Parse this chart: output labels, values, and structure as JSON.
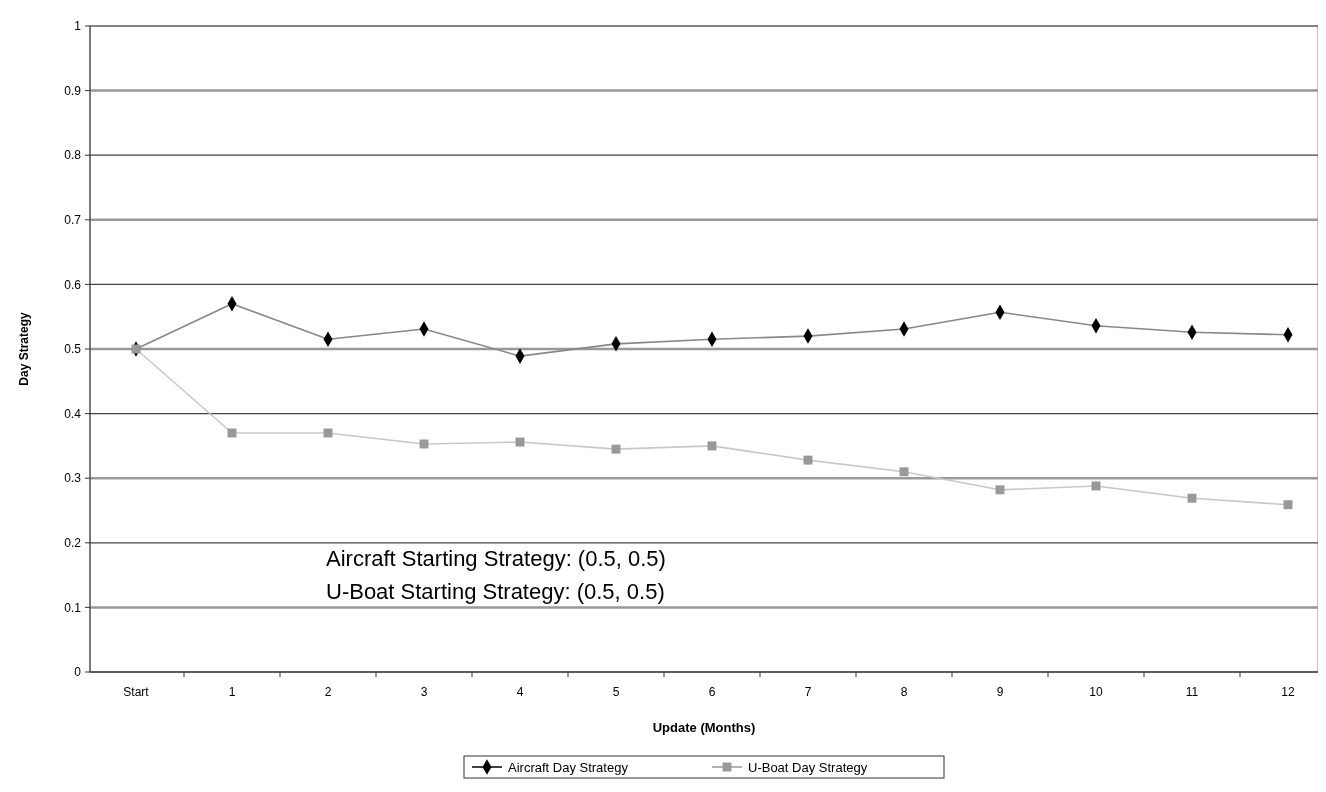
{
  "chart_data": {
    "type": "line",
    "xlabel": "Update (Months)",
    "ylabel": "Day Strategy",
    "categories": [
      "Start",
      "1",
      "2",
      "3",
      "4",
      "5",
      "6",
      "7",
      "8",
      "9",
      "10",
      "11",
      "12"
    ],
    "series": [
      {
        "name": "Aircraft Day Strategy",
        "color": "#000000",
        "marker": "diamond",
        "values": [
          0.5,
          0.57,
          0.515,
          0.531,
          0.489,
          0.508,
          0.515,
          0.52,
          0.531,
          0.557,
          0.536,
          0.526,
          0.522
        ]
      },
      {
        "name": "U-Boat Day Strategy",
        "color": "#999999",
        "marker": "square",
        "values": [
          0.5,
          0.37,
          0.37,
          0.353,
          0.356,
          0.345,
          0.35,
          0.328,
          0.31,
          0.282,
          0.288,
          0.269,
          0.259
        ]
      }
    ],
    "ylim": [
      0,
      1
    ],
    "yticks": [
      0,
      0.1,
      0.2,
      0.3,
      0.4,
      0.5,
      0.6,
      0.7,
      0.8,
      0.9,
      1
    ],
    "grid": "y",
    "legend": "bottom",
    "annotations": [
      "Aircraft Starting Strategy: (0.5, 0.5)",
      "U-Boat Starting Strategy: (0.5, 0.5)"
    ]
  }
}
